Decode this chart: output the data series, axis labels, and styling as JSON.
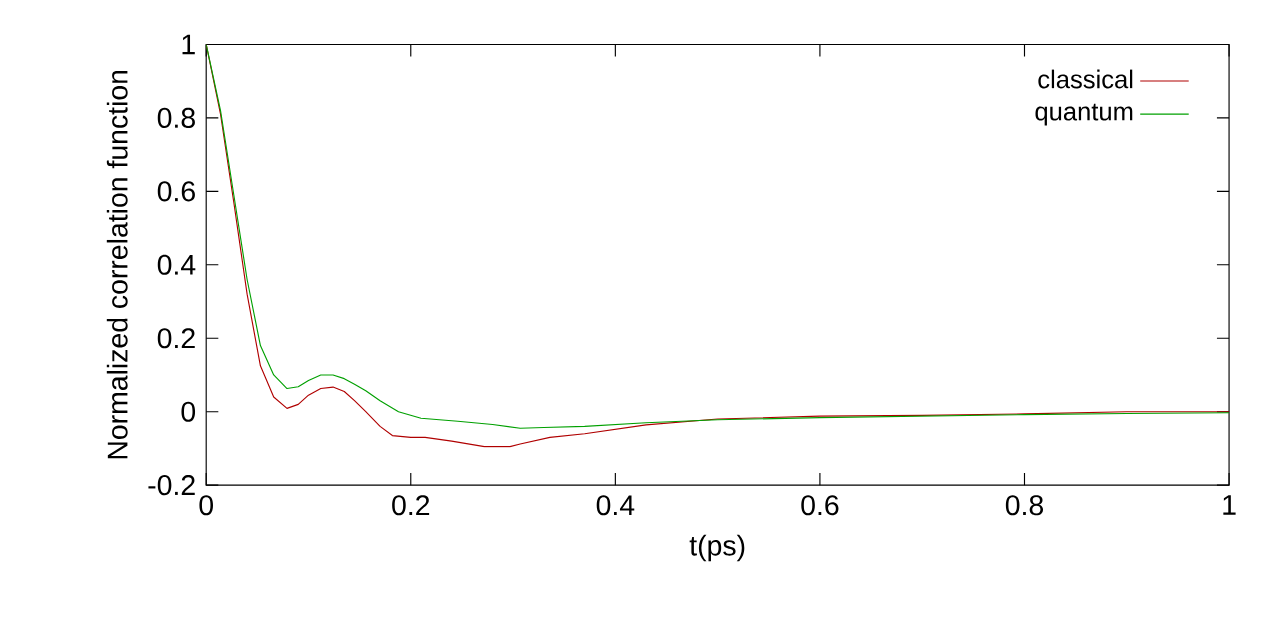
{
  "chart_data": {
    "type": "line",
    "xlabel": "t(ps)",
    "ylabel": "Normalized correlation function",
    "xlim": [
      0,
      1
    ],
    "ylim": [
      -0.2,
      1
    ],
    "xticks": [
      0,
      0.2,
      0.4,
      0.6,
      0.8,
      1
    ],
    "yticks": [
      -0.2,
      0,
      0.2,
      0.4,
      0.6,
      0.8,
      1
    ],
    "grid": false,
    "legend": "top right",
    "marker": "none",
    "line_style": "solid",
    "series": [
      {
        "name": "classical",
        "color": "#b00000",
        "x": [
          0,
          0.014,
          0.027,
          0.04,
          0.053,
          0.066,
          0.079,
          0.09,
          0.1,
          0.112,
          0.124,
          0.135,
          0.145,
          0.156,
          0.17,
          0.182,
          0.2,
          0.214,
          0.24,
          0.272,
          0.297,
          0.307,
          0.336,
          0.37,
          0.43,
          0.5,
          0.6,
          0.7,
          0.8,
          0.9,
          1
        ],
        "values": [
          1,
          0.81,
          0.57,
          0.32,
          0.125,
          0.04,
          0.009,
          0.02,
          0.045,
          0.063,
          0.067,
          0.055,
          0.03,
          0.0,
          -0.04,
          -0.065,
          -0.07,
          -0.07,
          -0.08,
          -0.095,
          -0.095,
          -0.088,
          -0.07,
          -0.06,
          -0.036,
          -0.02,
          -0.012,
          -0.01,
          -0.006,
          0,
          0
        ]
      },
      {
        "name": "quantum",
        "color": "#00a000",
        "x": [
          0,
          0.014,
          0.027,
          0.04,
          0.053,
          0.066,
          0.079,
          0.09,
          0.1,
          0.112,
          0.124,
          0.135,
          0.145,
          0.156,
          0.17,
          0.188,
          0.21,
          0.246,
          0.28,
          0.307,
          0.33,
          0.37,
          0.43,
          0.5,
          0.6,
          0.7,
          0.8,
          0.9,
          1
        ],
        "values": [
          1,
          0.82,
          0.59,
          0.36,
          0.18,
          0.1,
          0.063,
          0.068,
          0.085,
          0.1,
          0.1,
          0.09,
          0.075,
          0.057,
          0.03,
          0.0,
          -0.018,
          -0.026,
          -0.035,
          -0.045,
          -0.043,
          -0.04,
          -0.03,
          -0.022,
          -0.016,
          -0.012,
          -0.008,
          -0.005,
          -0.003
        ]
      }
    ]
  }
}
